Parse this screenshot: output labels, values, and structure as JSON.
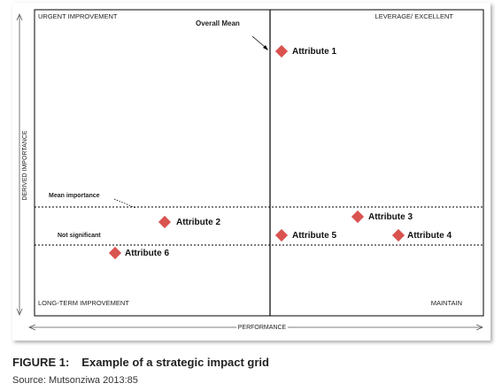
{
  "quadrants": {
    "top_left": "URGENT IMPROVEMENT",
    "top_right": "LEVERAGE/ EXCELLENT",
    "bottom_left": "LONG-TERM IMPROVEMENT",
    "bottom_right": "MAINTAIN"
  },
  "axes": {
    "x_label": "PERFORMANCE",
    "y_label": "DERIVED IMPORTANCE"
  },
  "annotations": {
    "overall_mean": "Overall Mean",
    "mean_importance": "Mean importance",
    "not_significant": "Not significant"
  },
  "attributes": [
    {
      "label": "Attribute 1",
      "quadrant": "Leverage/ Excellent"
    },
    {
      "label": "Attribute 2",
      "quadrant": "Urgent improvement"
    },
    {
      "label": "Attribute 3",
      "quadrant": "Leverage/ Excellent"
    },
    {
      "label": "Attribute 4",
      "quadrant": "Maintain"
    },
    {
      "label": "Attribute 5",
      "quadrant": "Maintain"
    },
    {
      "label": "Attribute 6",
      "quadrant": "Long-term improvement"
    }
  ],
  "colors": {
    "marker": "#d9534f",
    "axis": "#000000"
  },
  "caption": {
    "figure_number": "FIGURE 1:",
    "title": "Example of a strategic impact grid"
  },
  "source": {
    "label": "Source",
    "text": ": Mutsonziwa 2013:85"
  }
}
